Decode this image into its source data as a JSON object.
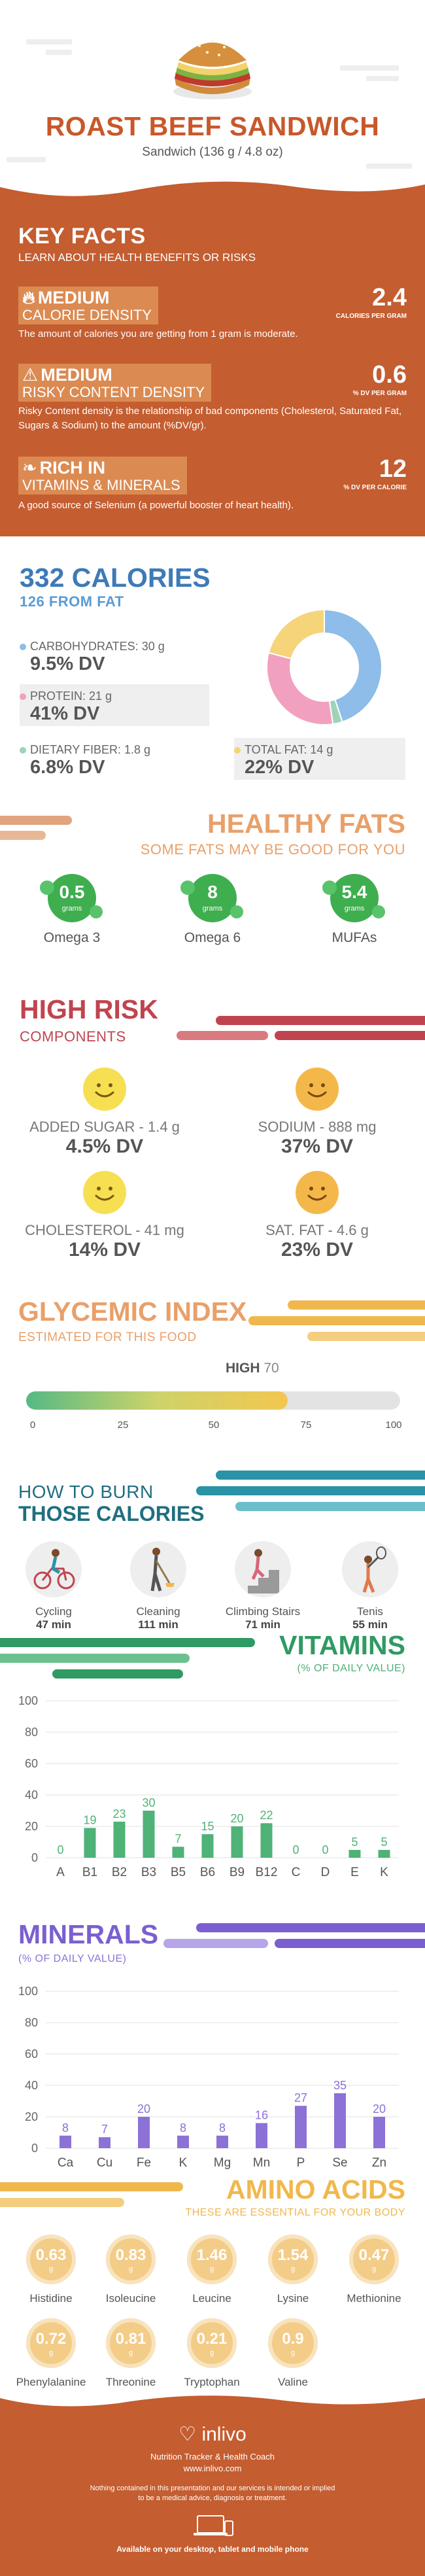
{
  "header": {
    "title": "ROAST BEEF SANDWICH",
    "subtitle": "Sandwich (136 g / 4.8 oz)"
  },
  "key_facts": {
    "title": "KEY FACTS",
    "subtitle": "LEARN ABOUT HEALTH BENEFITS OR RISKS",
    "items": [
      {
        "icon": "flame-icon",
        "level": "MEDIUM",
        "label": "CALORIE DENSITY",
        "value": "2.4",
        "unit": "CALORIES PER GRAM",
        "description": "The amount of calories you are getting from 1 gram is moderate."
      },
      {
        "icon": "warning-icon",
        "level": "MEDIUM",
        "label": "RISKY CONTENT DENSITY",
        "value": "0.6",
        "unit": "% DV PER GRAM",
        "description": "Risky Content density is the relationship of bad components (Cholesterol, Saturated Fat, Sugars & Sodium) to the amount (%DV/gr)."
      },
      {
        "icon": "leaf-icon",
        "level": "RICH IN",
        "label": "VITAMINS & MINERALS",
        "value": "12",
        "unit": "% DV PER CALORIE",
        "description": "A good source of Selenium (a powerful booster of heart health)."
      }
    ]
  },
  "calories": {
    "title": "332 CALORIES",
    "subtitle": "126 FROM FAT",
    "macros": [
      {
        "label": "CARBOHYDRATES: 30 g",
        "dv": "9.5% DV",
        "color": "#8dbde8"
      },
      {
        "label": "PROTEIN: 21 g",
        "dv": "41% DV",
        "color": "#f2a0bf"
      },
      {
        "label": "DIETARY FIBER: 1.8 g",
        "dv": "6.8% DV",
        "color": "#9ed3b8"
      },
      {
        "label": "TOTAL FAT: 14 g",
        "dv": "22% DV",
        "color": "#f5d47a"
      }
    ],
    "donut": [
      {
        "name": "carbohydrates",
        "value": 30,
        "color": "#8dbde8"
      },
      {
        "name": "fiber",
        "value": 1.8,
        "color": "#9ed3b8"
      },
      {
        "name": "protein",
        "value": 21,
        "color": "#f2a0bf"
      },
      {
        "name": "fat",
        "value": 14,
        "color": "#f5d47a"
      }
    ]
  },
  "healthy_fats": {
    "title": "HEALTHY FATS",
    "subtitle": "SOME FATS MAY BE GOOD FOR YOU",
    "items": [
      {
        "value": "0.5",
        "unit": "grams",
        "name": "Omega 3"
      },
      {
        "value": "8",
        "unit": "grams",
        "name": "Omega 6"
      },
      {
        "value": "5.4",
        "unit": "grams",
        "name": "MUFAs"
      }
    ]
  },
  "high_risk": {
    "title": "HIGH RISK",
    "subtitle": "COMPONENTS",
    "items": [
      {
        "label": "ADDED SUGAR - 1.4 g",
        "dv": "4.5% DV",
        "color": "#f7df52",
        "face": "smile-face-icon"
      },
      {
        "label": "SODIUM - 888 mg",
        "dv": "37% DV",
        "color": "#f4b84a",
        "face": "smile-face-icon"
      },
      {
        "label": "CHOLESTEROL - 41 mg",
        "dv": "14% DV",
        "color": "#f7df52",
        "face": "smile-face-icon"
      },
      {
        "label": "SAT. FAT - 4.6 g",
        "dv": "23% DV",
        "color": "#f4b84a",
        "face": "smile-face-icon"
      }
    ]
  },
  "glycemic": {
    "title": "GLYCEMIC INDEX",
    "subtitle": "ESTIMATED FOR THIS FOOD",
    "level_label": "HIGH",
    "value": 70,
    "value_text": "70",
    "max": 100,
    "ticks": [
      "0",
      "25",
      "50",
      "75",
      "100"
    ]
  },
  "burn": {
    "title_line1": "HOW TO BURN",
    "title_line2": "THOSE CALORIES",
    "activities": [
      {
        "name": "Cycling",
        "minutes": "47 min",
        "icon": "cycling-icon"
      },
      {
        "name": "Cleaning",
        "minutes": "111 min",
        "icon": "cleaning-icon"
      },
      {
        "name": "Climbing Stairs",
        "minutes": "71 min",
        "icon": "climbing-stairs-icon"
      },
      {
        "name": "Tenis",
        "minutes": "55 min",
        "icon": "tennis-icon"
      }
    ]
  },
  "vitamins": {
    "title": "VITAMINS",
    "subtitle": "(% OF DAILY VALUE)",
    "chart_data": {
      "type": "bar",
      "categories": [
        "A",
        "B1",
        "B2",
        "B3",
        "B5",
        "B6",
        "B9",
        "B12",
        "C",
        "D",
        "E",
        "K"
      ],
      "values": [
        0,
        19,
        23,
        30,
        7,
        15,
        20,
        22,
        0,
        0,
        5,
        5
      ],
      "labels": [
        "0",
        "19",
        "23",
        "30",
        "7",
        "15",
        "20",
        "22",
        "0",
        "0",
        "5",
        "5"
      ],
      "yticks": [
        "100",
        "80",
        "60",
        "40",
        "20",
        "0"
      ],
      "ylim": [
        0,
        100
      ],
      "color": "#4fb277",
      "label_color": "#4fb277"
    }
  },
  "minerals": {
    "title": "MINERALS",
    "subtitle": "(% OF DAILY VALUE)",
    "chart_data": {
      "type": "bar",
      "categories": [
        "Ca",
        "Cu",
        "Fe",
        "K",
        "Mg",
        "Mn",
        "P",
        "Se",
        "Zn"
      ],
      "values": [
        8,
        7,
        20,
        8,
        8,
        16,
        27,
        35,
        20
      ],
      "labels": [
        "8",
        "7",
        "20",
        "8",
        "8",
        "16",
        "27",
        "35",
        "20"
      ],
      "yticks": [
        "100",
        "80",
        "60",
        "40",
        "20",
        "0"
      ],
      "ylim": [
        0,
        100
      ],
      "color": "#8c72d6",
      "label_color": "#8c72d6"
    }
  },
  "amino": {
    "title": "AMINO ACIDS",
    "subtitle": "THESE ARE ESSENTIAL FOR YOUR BODY",
    "unit": "g",
    "items": [
      {
        "value": "0.63",
        "name": "Histidine"
      },
      {
        "value": "0.83",
        "name": "Isoleucine"
      },
      {
        "value": "1.46",
        "name": "Leucine"
      },
      {
        "value": "1.54",
        "name": "Lysine"
      },
      {
        "value": "0.47",
        "name": "Methionine"
      },
      {
        "value": "0.72",
        "name": "Phenylalanine"
      },
      {
        "value": "0.81",
        "name": "Threonine"
      },
      {
        "value": "0.21",
        "name": "Tryptophan"
      },
      {
        "value": "0.9",
        "name": "Valine"
      }
    ]
  },
  "footer": {
    "brand": "inlivo",
    "tagline": "Nutrition Tracker & Health Coach",
    "url": "www.inlivo.com",
    "disclaimer_line1": "Nothing contained in this presentation and our services is intended or implied",
    "disclaimer_line2": "to be a medical advice, diagnosis or treatment.",
    "available": "Available on your desktop, tablet and mobile phone"
  },
  "colors": {
    "brand_orange": "#c45d30",
    "blue": "#3d7ab8",
    "green": "#3fae4f",
    "red": "#c0444f",
    "teal": "#2a93a6",
    "vitamin_green": "#2f9a64",
    "mineral_purple": "#7b5fd0",
    "amber": "#f0b84c"
  }
}
